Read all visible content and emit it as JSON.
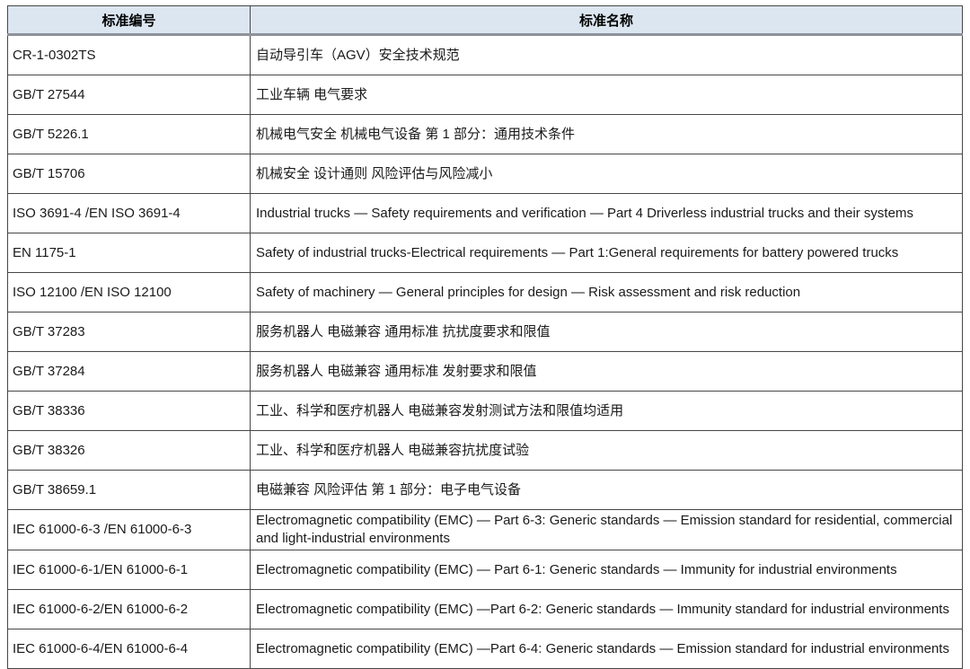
{
  "theme": {
    "header_background": "#dce6f1",
    "header_text_color": "#000000",
    "header_divider_color": "#8e9399",
    "grid_border_color": "#474747",
    "cell_text_color": "#1a1a1a",
    "page_background": "#ffffff"
  },
  "table": {
    "columns": [
      {
        "label": "标准编号"
      },
      {
        "label": "标准名称"
      }
    ],
    "rows": [
      {
        "code": "CR-1-0302TS",
        "name": "自动导引车（AGV）安全技术规范"
      },
      {
        "code": "GB/T 27544",
        "name": "工业车辆 电气要求"
      },
      {
        "code": "GB/T 5226.1",
        "name": "机械电气安全 机械电气设备 第 1 部分：通用技术条件"
      },
      {
        "code": "GB/T 15706",
        "name": "机械安全 设计通则 风险评估与风险减小"
      },
      {
        "code": "ISO 3691-4 /EN ISO 3691-4",
        "name": "Industrial trucks — Safety requirements and verification — Part 4 Driverless industrial trucks and their systems"
      },
      {
        "code": "EN 1175-1",
        "name": "Safety of industrial trucks-Electrical requirements — Part 1:General requirements for battery powered trucks"
      },
      {
        "code": "ISO 12100 /EN ISO 12100",
        "name": "Safety of machinery — General principles for design — Risk assessment and risk reduction"
      },
      {
        "code": "GB/T 37283",
        "name": "服务机器人 电磁兼容 通用标准 抗扰度要求和限值"
      },
      {
        "code": "GB/T 37284",
        "name": "服务机器人 电磁兼容 通用标准 发射要求和限值"
      },
      {
        "code": "GB/T 38336",
        "name": "工业、科学和医疗机器人 电磁兼容发射测试方法和限值均适用"
      },
      {
        "code": "GB/T 38326",
        "name": "工业、科学和医疗机器人 电磁兼容抗扰度试验"
      },
      {
        "code": "GB/T 38659.1",
        "name": "电磁兼容 风险评估 第 1 部分：电子电气设备"
      },
      {
        "code": "IEC 61000-6-3 /EN 61000-6-3",
        "name": "Electromagnetic compatibility (EMC) — Part 6-3: Generic standards — Emission standard for residential, commercial and light-industrial environments"
      },
      {
        "code": "IEC 61000-6-1/EN 61000-6-1",
        "name": "Electromagnetic compatibility (EMC) — Part 6-1: Generic standards — Immunity for industrial environments"
      },
      {
        "code": "IEC 61000-6-2/EN 61000-6-2",
        "name": "Electromagnetic compatibility (EMC) —Part 6-2: Generic standards — Immunity standard for industrial environments"
      },
      {
        "code": "IEC 61000-6-4/EN 61000-6-4",
        "name": "Electromagnetic compatibility (EMC) —Part 6-4: Generic standards — Emission standard for industrial environments"
      }
    ]
  }
}
